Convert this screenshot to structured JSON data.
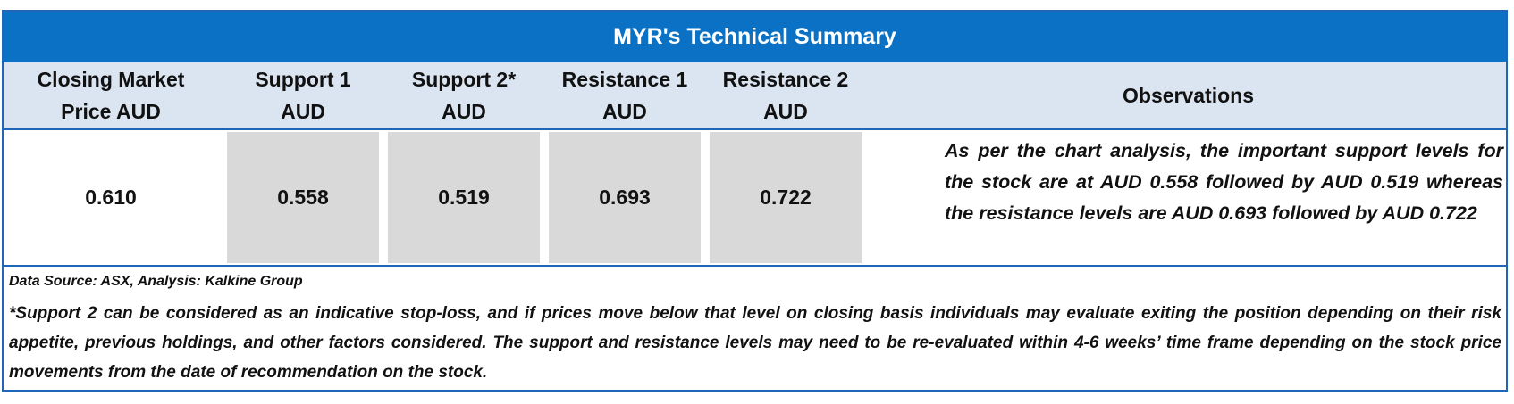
{
  "title": "MYR's Technical Summary",
  "headers": {
    "closing_line1": "Closing Market",
    "closing_line2": "Price AUD",
    "support1": "Support 1 AUD",
    "support2_line1": "Support 2*",
    "support2_line2": "AUD",
    "resistance1_line1": "Resistance 1",
    "resistance1_line2": "AUD",
    "resistance2_line1": "Resistance 2",
    "resistance2_line2": "AUD",
    "observations": "Observations"
  },
  "values": {
    "closing_price": "0.610",
    "support1": "0.558",
    "support2": "0.519",
    "resistance1": "0.693",
    "resistance2": "0.722"
  },
  "observation_text": "As per the chart analysis, the important support levels for the stock are at AUD 0.558 followed by AUD 0.519 whereas the resistance levels are AUD 0.693 followed by AUD 0.722",
  "data_source": "Data Source: ASX, Analysis: Kalkine Group",
  "footnote": "*Support 2 can be considered as an indicative stop-loss, and if prices move below that level on closing basis individuals may evaluate exiting the position depending on their risk appetite, previous holdings, and other factors considered. The support and resistance levels may need to be re-evaluated within 4-6 weeks’ time frame depending on the stock price movements from the date of recommendation on the stock.",
  "colors": {
    "title_background": "#0b71c4",
    "header_background": "#dbe5f2",
    "shaded_cell": "#d9d9d9",
    "border": "#1f66b8"
  }
}
